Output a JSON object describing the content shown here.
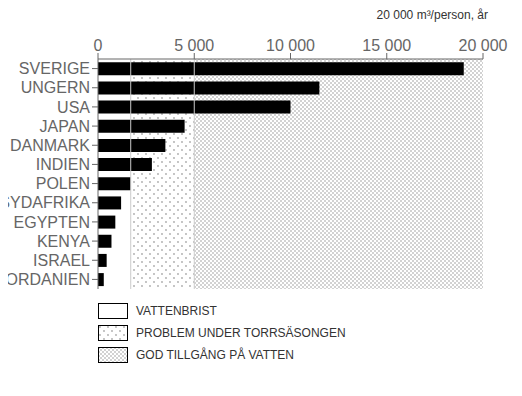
{
  "chart_data": {
    "type": "bar",
    "orientation": "horizontal",
    "xlabel": "20 000 m³/person, år",
    "categories": [
      "SVERIGE",
      "UNGERN",
      "USA",
      "JAPAN",
      "DANMARK",
      "INDIEN",
      "POLEN",
      "SYDAFRIKA",
      "EGYPTEN",
      "KENYA",
      "ISRAEL",
      "JORDANIEN"
    ],
    "values": [
      19000,
      11500,
      10000,
      4500,
      3500,
      2800,
      1700,
      1200,
      900,
      700,
      450,
      300
    ],
    "color": "#000000",
    "xlim": [
      0,
      20000
    ],
    "xticks": [
      0,
      {
        "value": 5000,
        "label": "5 000"
      },
      {
        "value": 10000,
        "label": "10 000"
      },
      {
        "value": 15000,
        "label": "15 000"
      },
      {
        "value": 20000,
        "label": "20 000"
      }
    ],
    "vlines": [
      1700,
      5000
    ],
    "zones": [
      {
        "label": "VATTENBRIST",
        "start": 0,
        "end": 1700
      },
      {
        "label": "PROBLEM UNDER TORRSÄSONGEN",
        "start": 1700,
        "end": 5000
      },
      {
        "label": "GOD TILLGÅNG PÅ VATTEN",
        "start": 5000,
        "end": 20000
      }
    ],
    "grid": false
  }
}
